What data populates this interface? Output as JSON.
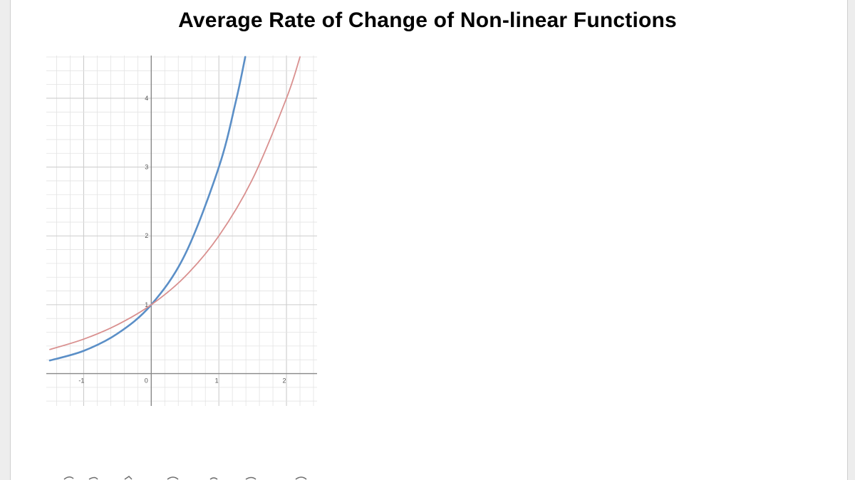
{
  "slide": {
    "title": "Average Rate of Change of Non-linear Functions"
  },
  "chart_data": {
    "type": "line",
    "title": "Average Rate of Change of Non-linear Functions",
    "xlabel": "",
    "ylabel": "",
    "xlim": [
      -1.5,
      2.4
    ],
    "ylim": [
      -0.45,
      4.6
    ],
    "grid": true,
    "x_ticks": [
      {
        "value": -1,
        "label": "-1"
      },
      {
        "value": 0,
        "label": "0"
      },
      {
        "value": 1,
        "label": "1"
      },
      {
        "value": 2,
        "label": "2"
      }
    ],
    "y_ticks": [
      {
        "value": 1,
        "label": "1"
      },
      {
        "value": 2,
        "label": "2"
      },
      {
        "value": 3,
        "label": "3"
      },
      {
        "value": 4,
        "label": "4"
      }
    ],
    "series": [
      {
        "color": "#5b8fc7",
        "x": [
          -1.5,
          -1,
          -0.5,
          0,
          0.5,
          1,
          1.25,
          1.39
        ],
        "y": [
          0.19,
          0.33,
          0.58,
          1,
          1.73,
          3,
          3.95,
          4.6
        ]
      },
      {
        "color": "#d9908f",
        "x": [
          -1.5,
          -1,
          -0.5,
          0,
          0.5,
          1,
          1.5,
          2,
          2.2
        ],
        "y": [
          0.35,
          0.5,
          0.71,
          1,
          1.41,
          2,
          2.83,
          4,
          4.6
        ]
      }
    ]
  },
  "colors": {
    "grid_minor": "#e3e3e3",
    "grid_major": "#cccccc",
    "axis": "#8a8a8a",
    "canvas_bg": "#ffffff",
    "outer_bg": "#ededed"
  }
}
